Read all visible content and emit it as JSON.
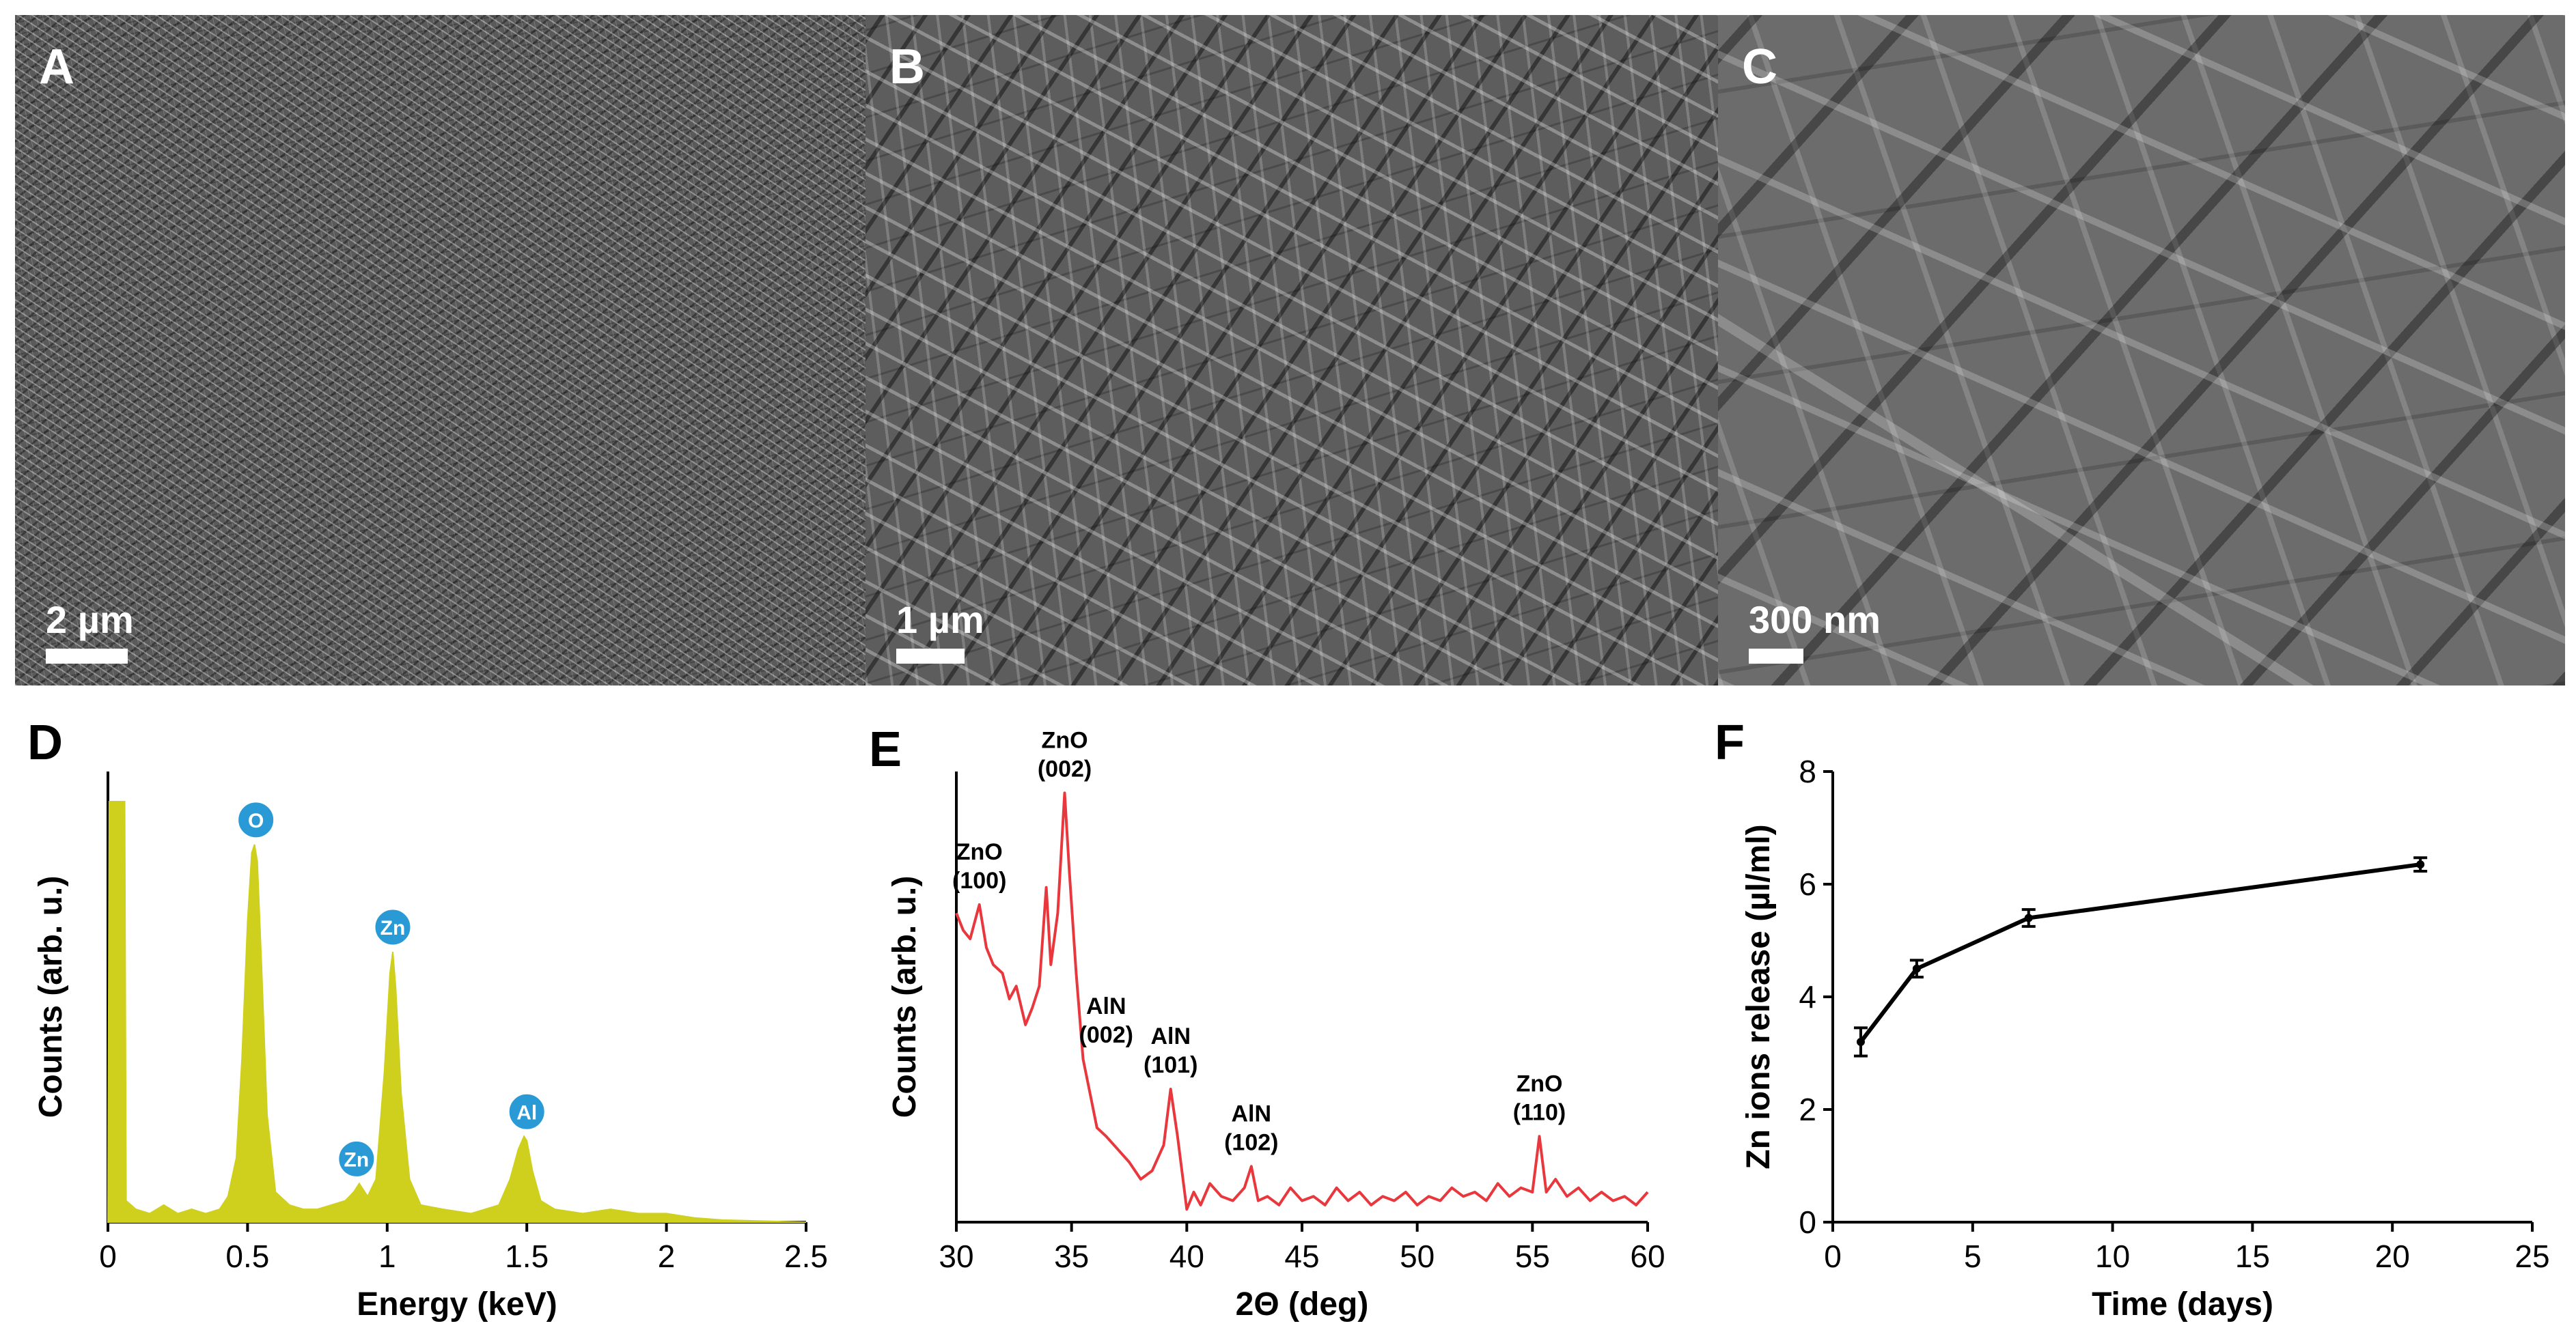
{
  "figure": {
    "panels": [
      {
        "label": "A",
        "scale": "2 µm"
      },
      {
        "label": "B",
        "scale": "1 µm"
      },
      {
        "label": "C",
        "scale": "300 nm"
      }
    ]
  },
  "colors": {
    "eds": "#cfcf1e",
    "xrd": "#e8383d",
    "peak_badge": "#2a9ad6",
    "release": "#000000"
  },
  "chart_data": [
    {
      "panel": "D",
      "type": "area",
      "xlabel": "Energy (keV)",
      "ylabel": "Counts (arb. u.)",
      "xlim": [
        0,
        2.5
      ],
      "ylim": [
        0,
        1.05
      ],
      "xticks": [
        "0",
        "0.5",
        "1",
        "1.5",
        "2",
        "2.5"
      ],
      "x": [
        0.0,
        0.005,
        0.06,
        0.065,
        0.1,
        0.15,
        0.2,
        0.25,
        0.3,
        0.35,
        0.4,
        0.43,
        0.46,
        0.48,
        0.5,
        0.515,
        0.525,
        0.535,
        0.55,
        0.57,
        0.6,
        0.65,
        0.7,
        0.75,
        0.8,
        0.85,
        0.88,
        0.9,
        0.93,
        0.96,
        0.99,
        1.01,
        1.02,
        1.03,
        1.05,
        1.08,
        1.12,
        1.2,
        1.3,
        1.4,
        1.44,
        1.47,
        1.49,
        1.5,
        1.52,
        1.55,
        1.6,
        1.7,
        1.8,
        1.9,
        2.0,
        2.1,
        2.2,
        2.5
      ],
      "values": [
        0.0,
        0.98,
        0.98,
        0.05,
        0.03,
        0.02,
        0.04,
        0.02,
        0.03,
        0.02,
        0.03,
        0.06,
        0.15,
        0.38,
        0.7,
        0.86,
        0.88,
        0.84,
        0.6,
        0.25,
        0.07,
        0.04,
        0.03,
        0.03,
        0.04,
        0.05,
        0.07,
        0.09,
        0.06,
        0.1,
        0.35,
        0.58,
        0.63,
        0.55,
        0.3,
        0.1,
        0.04,
        0.03,
        0.02,
        0.04,
        0.1,
        0.17,
        0.2,
        0.19,
        0.12,
        0.05,
        0.03,
        0.02,
        0.03,
        0.02,
        0.02,
        0.01,
        0.005,
        0.0
      ],
      "annotations": [
        {
          "text": "O",
          "x": 0.53,
          "y": 0.88
        },
        {
          "text": "Zn",
          "x": 1.02,
          "y": 0.63
        },
        {
          "text": "Zn",
          "x": 0.89,
          "y": 0.09
        },
        {
          "text": "Al",
          "x": 1.5,
          "y": 0.2
        }
      ]
    },
    {
      "panel": "E",
      "type": "line",
      "xlabel": "2Θ (deg)",
      "ylabel": "Counts (arb. u.)",
      "xlim": [
        30,
        60
      ],
      "ylim": [
        0,
        1.05
      ],
      "xticks": [
        "30",
        "35",
        "40",
        "45",
        "50",
        "55",
        "60"
      ],
      "x": [
        30.0,
        30.3,
        30.6,
        31.0,
        31.3,
        31.6,
        32.0,
        32.3,
        32.6,
        33.0,
        33.3,
        33.6,
        33.9,
        34.1,
        34.4,
        34.7,
        34.9,
        35.2,
        35.5,
        35.8,
        36.1,
        36.5,
        37.0,
        37.5,
        38.0,
        38.5,
        39.0,
        39.3,
        39.6,
        40.0,
        40.3,
        40.6,
        41.0,
        41.5,
        42.0,
        42.5,
        42.8,
        43.1,
        43.5,
        44.0,
        44.5,
        45.0,
        45.5,
        46.0,
        46.5,
        47.0,
        47.5,
        48.0,
        48.5,
        49.0,
        49.5,
        50.0,
        50.5,
        51.0,
        51.5,
        52.0,
        52.5,
        53.0,
        53.5,
        54.0,
        54.5,
        55.0,
        55.3,
        55.6,
        56.0,
        56.5,
        57.0,
        57.5,
        58.0,
        58.5,
        59.0,
        59.5,
        60.0
      ],
      "values": [
        0.72,
        0.68,
        0.66,
        0.74,
        0.64,
        0.6,
        0.58,
        0.52,
        0.55,
        0.46,
        0.5,
        0.55,
        0.78,
        0.6,
        0.72,
        1.0,
        0.82,
        0.58,
        0.38,
        0.3,
        0.22,
        0.2,
        0.17,
        0.14,
        0.1,
        0.12,
        0.18,
        0.31,
        0.2,
        0.03,
        0.07,
        0.04,
        0.09,
        0.06,
        0.05,
        0.08,
        0.13,
        0.05,
        0.06,
        0.04,
        0.08,
        0.05,
        0.06,
        0.04,
        0.08,
        0.05,
        0.07,
        0.04,
        0.06,
        0.05,
        0.07,
        0.04,
        0.06,
        0.05,
        0.08,
        0.06,
        0.07,
        0.05,
        0.09,
        0.06,
        0.08,
        0.07,
        0.2,
        0.07,
        0.1,
        0.06,
        0.08,
        0.05,
        0.07,
        0.05,
        0.06,
        0.04,
        0.07
      ],
      "annotations": [
        {
          "text": "ZnO",
          "sub": "(100)",
          "x": 31.0,
          "y": 0.74
        },
        {
          "text": "ZnO",
          "sub": "(002)",
          "x": 34.7,
          "y": 1.0
        },
        {
          "text": "AlN",
          "sub": "(002)",
          "x": 36.5,
          "y": 0.38
        },
        {
          "text": "AlN",
          "sub": "(101)",
          "x": 39.3,
          "y": 0.31
        },
        {
          "text": "AlN",
          "sub": "(102)",
          "x": 42.8,
          "y": 0.13
        },
        {
          "text": "ZnO",
          "sub": "(110)",
          "x": 55.3,
          "y": 0.2
        }
      ]
    },
    {
      "panel": "F",
      "type": "line",
      "xlabel": "Time (days)",
      "ylabel": "Zn ions release (µl/ml)",
      "xlim": [
        0,
        25
      ],
      "ylim": [
        0,
        8
      ],
      "xticks": [
        "0",
        "5",
        "10",
        "15",
        "20",
        "25"
      ],
      "yticks": [
        "0",
        "2",
        "4",
        "6",
        "8"
      ],
      "x": [
        1,
        3,
        7,
        21
      ],
      "values": [
        3.2,
        4.5,
        5.4,
        6.35
      ],
      "errors": [
        0.25,
        0.15,
        0.15,
        0.12
      ]
    }
  ]
}
